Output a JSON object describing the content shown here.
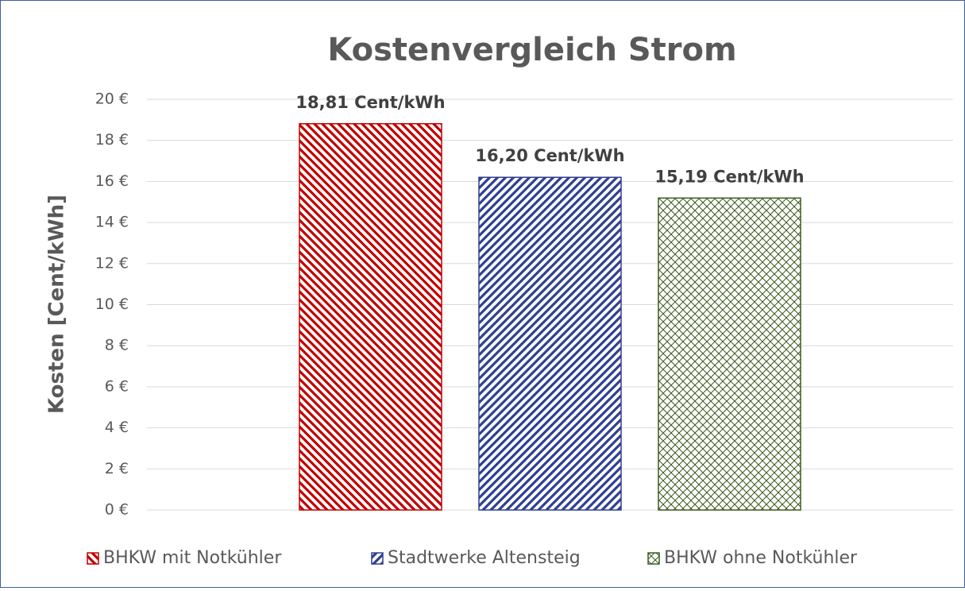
{
  "chart_data": {
    "type": "bar",
    "title": "Kostenvergleich Strom",
    "y_label": "Kosten [Cent/kWh]",
    "categories": [
      null
    ],
    "series": [
      {
        "name": "BHKW mit Notkühler",
        "color": "#c00000",
        "pattern": "downward-diagonal",
        "values": [
          18.81
        ],
        "value_labels": [
          "18,81 Cent/kWh"
        ]
      },
      {
        "name": "Stadtwerke Altensteig",
        "color": "#2f3f8f",
        "pattern": "upward-diagonal",
        "values": [
          16.2
        ],
        "value_labels": [
          "16,20 Cent/kWh"
        ]
      },
      {
        "name": "BHKW ohne Notkühler",
        "color": "#3b5a1e",
        "pattern": "crosshatch",
        "values": [
          15.19
        ],
        "value_labels": [
          "15,19 Cent/kWh"
        ]
      }
    ],
    "ylim": [
      0,
      20
    ],
    "yticks": [
      {
        "value": 0,
        "label": "0 €"
      },
      {
        "value": 2,
        "label": "2 €"
      },
      {
        "value": 4,
        "label": "4 €"
      },
      {
        "value": 6,
        "label": "6 €"
      },
      {
        "value": 8,
        "label": "8 €"
      },
      {
        "value": 10,
        "label": "10 €"
      },
      {
        "value": 12,
        "label": "12 €"
      },
      {
        "value": 14,
        "label": "14 €"
      },
      {
        "value": 16,
        "label": "16 €"
      },
      {
        "value": 18,
        "label": "18 €"
      },
      {
        "value": 20,
        "label": "20 €"
      }
    ],
    "grid": true,
    "legend": "bottom"
  }
}
